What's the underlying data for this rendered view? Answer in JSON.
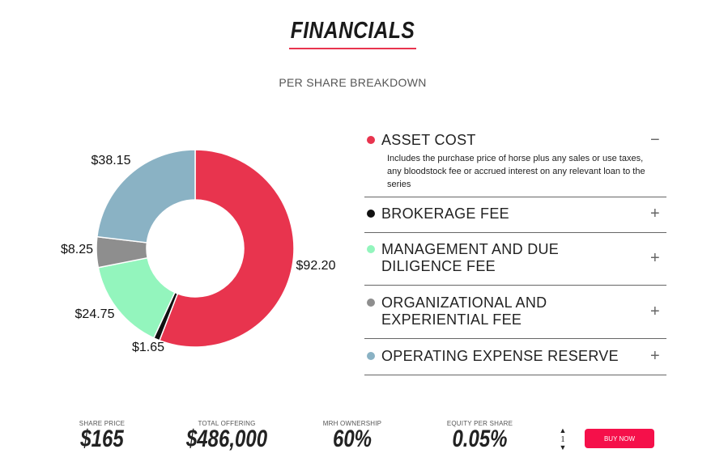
{
  "header": {
    "title": "FINANCIALS",
    "subtitle": "PER SHARE BREAKDOWN"
  },
  "chart_data": {
    "type": "pie",
    "variant": "donut",
    "categories": [
      "Asset Cost",
      "Brokerage Fee",
      "Management and Due Diligence Fee",
      "Organizational and Experiential Fee",
      "Operating Expense Reserve"
    ],
    "values": [
      92.2,
      1.65,
      24.75,
      8.25,
      38.15
    ],
    "labels": [
      "$92.20",
      "$1.65",
      "$24.75",
      "$8.25",
      "$38.15"
    ],
    "colors": [
      "#e8344e",
      "#111111",
      "#93f5bd",
      "#8e8e8e",
      "#8ab2c4"
    ]
  },
  "accordion": [
    {
      "label": "ASSET COST",
      "sign": "−",
      "expanded": true,
      "description": "Includes the purchase price of horse plus any sales or use taxes, any bloodstock fee or accrued interest on any relevant loan to the series"
    },
    {
      "label": "BROKERAGE FEE",
      "sign": "+"
    },
    {
      "label": "MANAGEMENT AND DUE DILIGENCE FEE",
      "sign": "+"
    },
    {
      "label": "ORGANIZATIONAL AND EXPERIENTIAL FEE",
      "sign": "+"
    },
    {
      "label": "OPERATING EXPENSE RESERVE",
      "sign": "+"
    }
  ],
  "stats": [
    {
      "label": "SHARE PRICE",
      "value": "$165"
    },
    {
      "label": "TOTAL OFFERING",
      "value": "$486,000"
    },
    {
      "label": "MRH OWNERSHIP",
      "value": "60%"
    },
    {
      "label": "EQUITY PER SHARE",
      "value": "0.05%"
    }
  ],
  "quantity": "1",
  "buy_label": "BUY NOW"
}
